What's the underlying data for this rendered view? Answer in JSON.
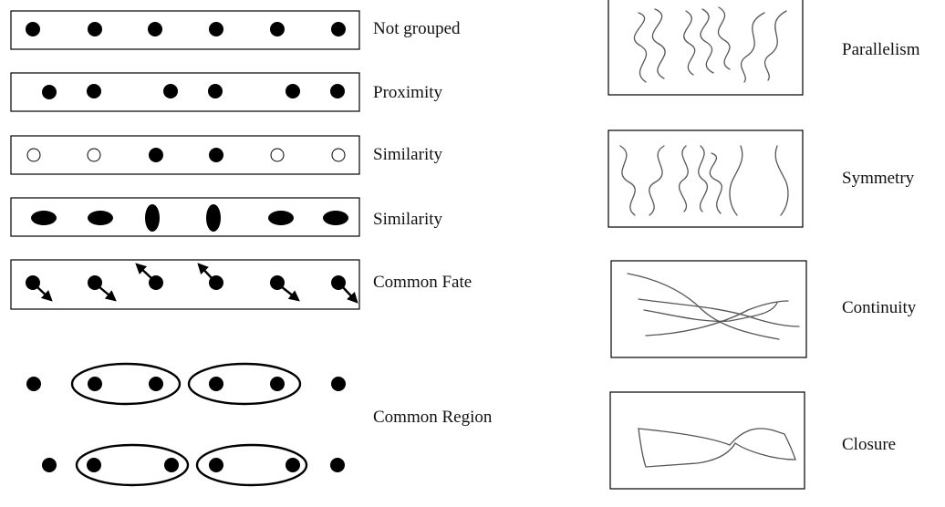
{
  "left_panels": [
    {
      "label": "Not grouped"
    },
    {
      "label": "Proximity"
    },
    {
      "label": "Similarity"
    },
    {
      "label": "Similarity"
    },
    {
      "label": "Common Fate"
    }
  ],
  "common_region": {
    "label": "Common Region"
  },
  "right_panels": [
    {
      "label": "Parallelism"
    },
    {
      "label": "Symmetry"
    },
    {
      "label": "Continuity"
    },
    {
      "label": "Closure"
    }
  ]
}
